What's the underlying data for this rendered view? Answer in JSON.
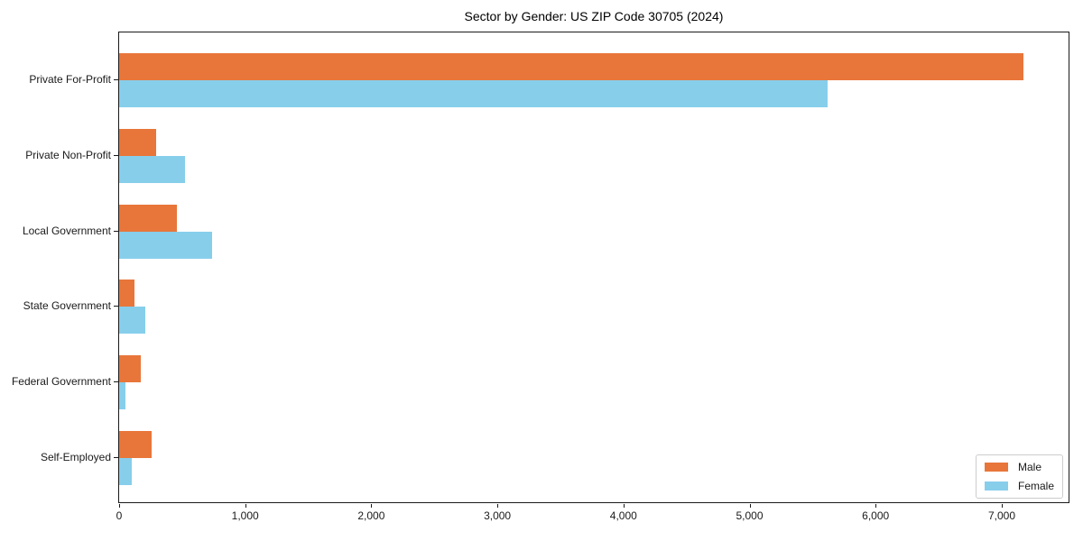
{
  "title": "Sector by Gender: US ZIP Code 30705 (2024)",
  "colors": {
    "male": "#e8763a",
    "female": "#87ceeb",
    "axis": "#1a1a1a",
    "legend_border": "#cccccc",
    "background": "#ffffff"
  },
  "legend": {
    "position": "lower right",
    "items": [
      {
        "label": "Male",
        "color": "#e8763a"
      },
      {
        "label": "Female",
        "color": "#87ceeb"
      }
    ]
  },
  "chart_data": {
    "type": "bar",
    "orientation": "horizontal",
    "title": "Sector by Gender: US ZIP Code 30705 (2024)",
    "categories": [
      "Private For-Profit",
      "Private Non-Profit",
      "Local Government",
      "State Government",
      "Federal Government",
      "Self-Employed"
    ],
    "series": [
      {
        "name": "Male",
        "color": "#e8763a",
        "values": [
          7170,
          295,
          460,
          120,
          170,
          255
        ]
      },
      {
        "name": "Female",
        "color": "#87ceeb",
        "values": [
          5620,
          520,
          740,
          210,
          50,
          100
        ]
      }
    ],
    "xlabel": "",
    "ylabel": "",
    "xlim": [
      0,
      7530
    ],
    "x_tick_values": [
      0,
      1000,
      2000,
      3000,
      4000,
      5000,
      6000,
      7000
    ],
    "x_tick_labels": [
      "0",
      "1,000",
      "2,000",
      "3,000",
      "4,000",
      "5,000",
      "6,000",
      "7,000"
    ],
    "grid": false,
    "legend_position": "lower right"
  }
}
